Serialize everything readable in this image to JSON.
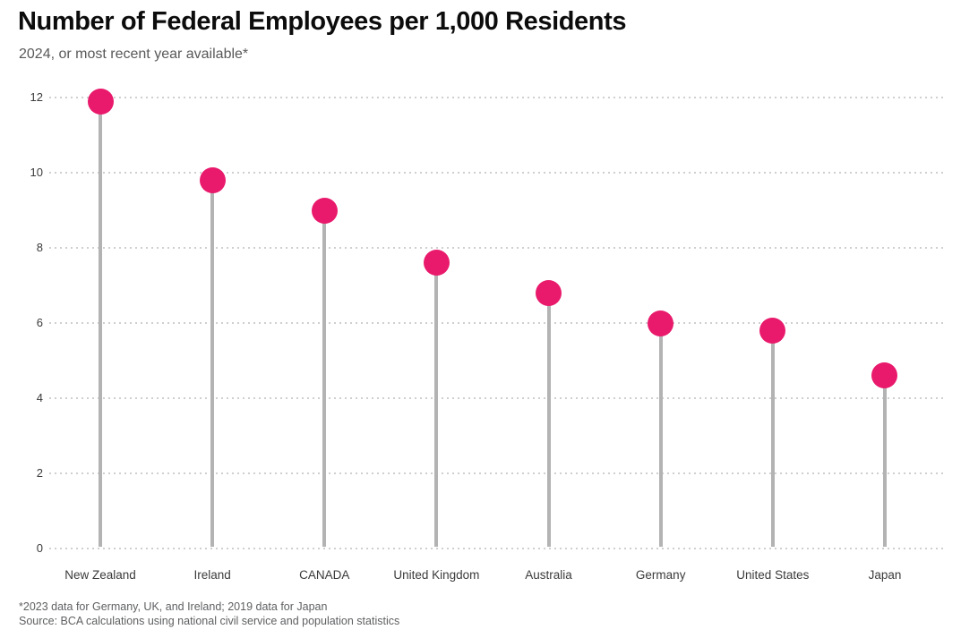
{
  "header": {
    "title": "Number of Federal Employees per 1,000 Residents",
    "subtitle": "2024, or most recent year available*"
  },
  "footnotes": [
    "*2023 data for Germany, UK, and Ireland; 2019 data for Japan",
    "Source: BCA calculations using national civil service and population statistics"
  ],
  "colors": {
    "dot": "#e9196c",
    "stem": "#b3b3b3",
    "grid": "#cfcfcf",
    "title": "#0c0c0c",
    "subtitle": "#595959",
    "axis_text": "#3b3b3b",
    "footnote": "#5f6062"
  },
  "chart_data": {
    "type": "scatter",
    "variant": "lollipop",
    "title": "Number of Federal Employees per 1,000 Residents",
    "subtitle": "2024, or most recent year available*",
    "categories": [
      "New Zealand",
      "Ireland",
      "CANADA",
      "United Kingdom",
      "Australia",
      "Germany",
      "United States",
      "Japan"
    ],
    "values": [
      11.9,
      9.8,
      9.0,
      7.6,
      6.8,
      6.0,
      5.8,
      4.6
    ],
    "xlabel": "",
    "ylabel": "",
    "ylim": [
      0,
      12
    ],
    "yticks": [
      0,
      2,
      4,
      6,
      8,
      10,
      12
    ],
    "grid": "horizontal dotted",
    "legend": "none"
  }
}
